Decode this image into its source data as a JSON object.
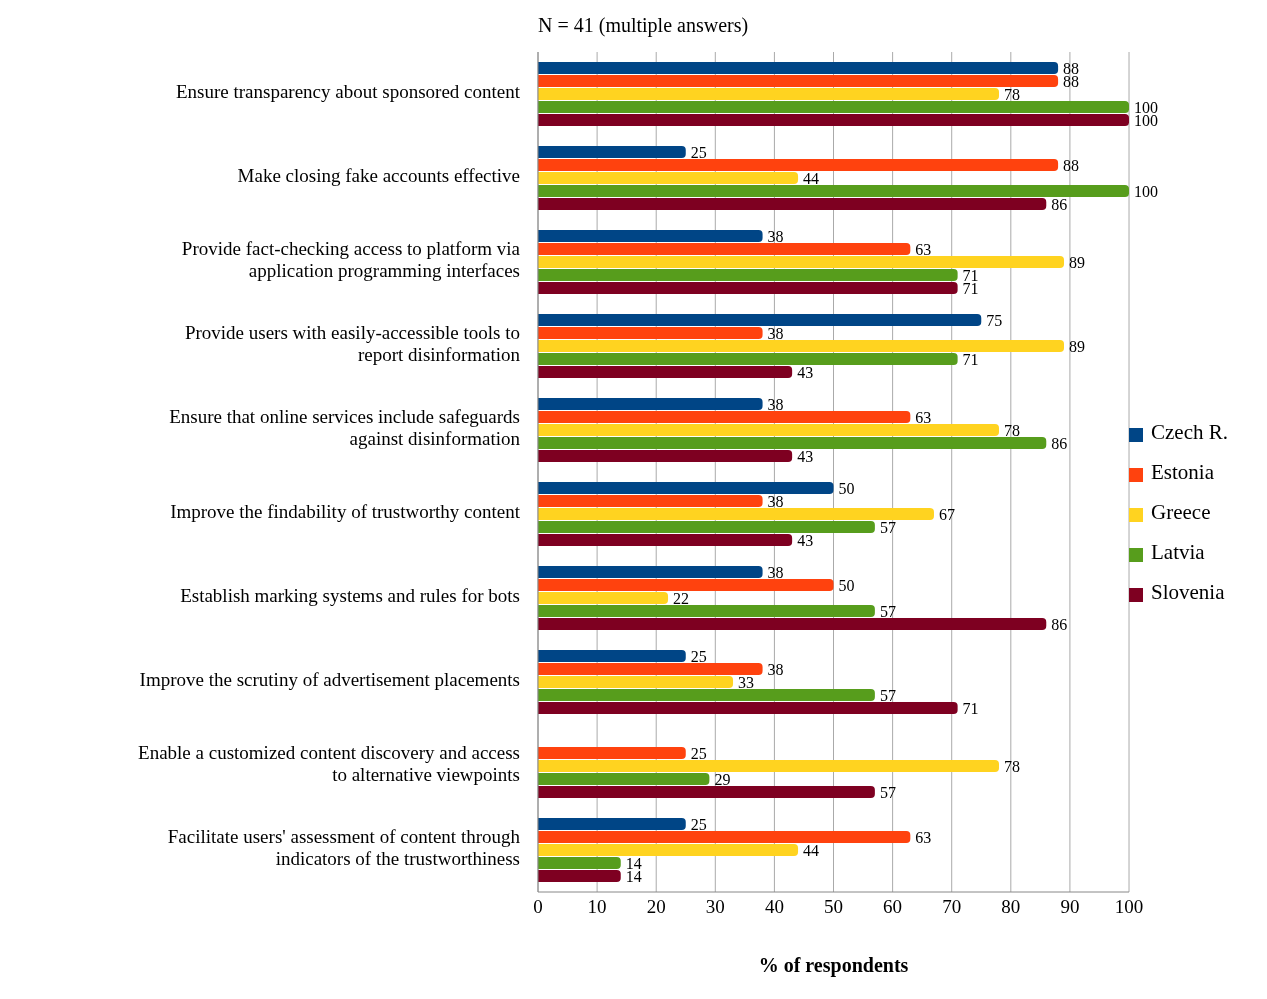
{
  "chart_data": {
    "type": "bar",
    "orientation": "horizontal",
    "title": "N = 41 (multiple answers)",
    "xlabel": "% of respondents",
    "categories": [
      "Ensure transparency about sponsored content",
      "Make closing fake accounts effective",
      "Provide fact-checking access to platform via application programming interfaces",
      "Provide users with easily-accessible tools to report disinformation",
      "Ensure that online services include safeguards against disinformation",
      "Improve the findability of trustworthy content",
      "Establish marking systems and rules for bots",
      "Improve the scrutiny of advertisement placements",
      "Enable a customized content discovery and access to alternative viewpoints",
      "Facilitate users' assessment of content through indicators of the trustworthiness"
    ],
    "series": [
      {
        "name": "Czech R.",
        "color": "#004586",
        "values": [
          88,
          25,
          38,
          75,
          38,
          50,
          38,
          25,
          null,
          25
        ]
      },
      {
        "name": "Estonia",
        "color": "#ff420e",
        "values": [
          88,
          88,
          63,
          38,
          63,
          38,
          50,
          38,
          25,
          63
        ]
      },
      {
        "name": "Greece",
        "color": "#ffd320",
        "values": [
          78,
          44,
          89,
          89,
          78,
          67,
          22,
          33,
          78,
          44
        ]
      },
      {
        "name": "Latvia",
        "color": "#579d1c",
        "values": [
          100,
          100,
          71,
          71,
          86,
          57,
          57,
          57,
          29,
          14
        ]
      },
      {
        "name": "Slovenia",
        "color": "#7e0021",
        "values": [
          100,
          86,
          71,
          43,
          43,
          43,
          86,
          71,
          57,
          14
        ]
      }
    ],
    "xlim": [
      0,
      100
    ],
    "xticks": [
      0,
      10,
      20,
      30,
      40,
      50,
      60,
      70,
      80,
      90,
      100
    ],
    "grid": "x",
    "legend": "right",
    "data_labels": true
  }
}
